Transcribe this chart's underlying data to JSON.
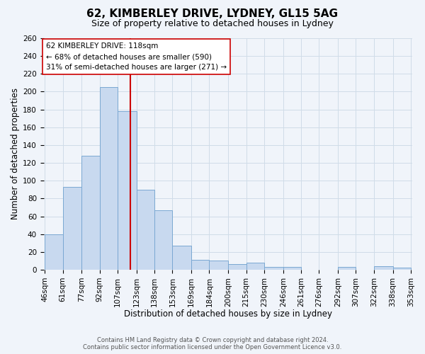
{
  "title": "62, KIMBERLEY DRIVE, LYDNEY, GL15 5AG",
  "subtitle": "Size of property relative to detached houses in Lydney",
  "xlabel": "Distribution of detached houses by size in Lydney",
  "ylabel": "Number of detached properties",
  "footer_lines": [
    "Contains HM Land Registry data © Crown copyright and database right 2024.",
    "Contains public sector information licensed under the Open Government Licence v3.0."
  ],
  "bar_left_edges": [
    46,
    61,
    77,
    92,
    107,
    123,
    138,
    153,
    169,
    184,
    200,
    215,
    230,
    246,
    261,
    276,
    292,
    307,
    322,
    338
  ],
  "bar_widths": [
    15,
    16,
    15,
    15,
    16,
    15,
    15,
    16,
    15,
    16,
    15,
    15,
    16,
    15,
    15,
    16,
    15,
    15,
    16,
    15
  ],
  "bar_heights": [
    40,
    93,
    128,
    205,
    178,
    90,
    67,
    27,
    11,
    10,
    6,
    8,
    3,
    3,
    0,
    0,
    3,
    0,
    4,
    2
  ],
  "bar_facecolor": "#c8d9ef",
  "bar_edgecolor": "#7aa8d2",
  "tick_labels": [
    "46sqm",
    "61sqm",
    "77sqm",
    "92sqm",
    "107sqm",
    "123sqm",
    "138sqm",
    "153sqm",
    "169sqm",
    "184sqm",
    "200sqm",
    "215sqm",
    "230sqm",
    "246sqm",
    "261sqm",
    "276sqm",
    "292sqm",
    "307sqm",
    "322sqm",
    "338sqm",
    "353sqm"
  ],
  "ylim": [
    0,
    260
  ],
  "yticks": [
    0,
    20,
    40,
    60,
    80,
    100,
    120,
    140,
    160,
    180,
    200,
    220,
    240,
    260
  ],
  "vline_x": 118,
  "vline_color": "#cc0000",
  "annotation_lines": [
    "62 KIMBERLEY DRIVE: 118sqm",
    "← 68% of detached houses are smaller (590)",
    "31% of semi-detached houses are larger (271) →"
  ],
  "annotation_fontsize": 7.5,
  "grid_color": "#d0dce8",
  "background_color": "#f0f4fa",
  "title_fontsize": 11,
  "subtitle_fontsize": 9,
  "axis_label_fontsize": 8.5,
  "tick_fontsize": 7.5
}
